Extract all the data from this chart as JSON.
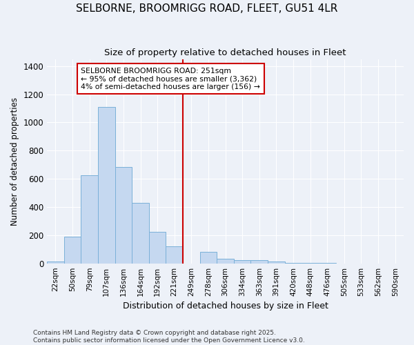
{
  "title": "SELBORNE, BROOMRIGG ROAD, FLEET, GU51 4LR",
  "subtitle": "Size of property relative to detached houses in Fleet",
  "xlabel": "Distribution of detached houses by size in Fleet",
  "ylabel": "Number of detached properties",
  "footnote": "Contains HM Land Registry data © Crown copyright and database right 2025.\nContains public sector information licensed under the Open Government Licence v3.0.",
  "bin_labels": [
    "22sqm",
    "50sqm",
    "79sqm",
    "107sqm",
    "136sqm",
    "164sqm",
    "192sqm",
    "221sqm",
    "249sqm",
    "278sqm",
    "306sqm",
    "334sqm",
    "363sqm",
    "391sqm",
    "420sqm",
    "448sqm",
    "476sqm",
    "505sqm",
    "533sqm",
    "562sqm",
    "590sqm"
  ],
  "bar_values": [
    15,
    190,
    625,
    1110,
    685,
    430,
    225,
    120,
    0,
    80,
    35,
    25,
    25,
    15,
    5,
    3,
    1,
    0,
    0,
    0,
    0
  ],
  "bar_color": "#c5d8f0",
  "bar_edge_color": "#7ab0d8",
  "vline_index": 8,
  "annotation_line1": "SELBORNE BROOMRIGG ROAD: 251sqm",
  "annotation_line2": "← 95% of detached houses are smaller (3,362)",
  "annotation_line3": "4% of semi-detached houses are larger (156) →",
  "annotation_box_color": "#cc0000",
  "vline_color": "#cc0000",
  "bg_color": "#edf1f8",
  "grid_color": "#ffffff",
  "ylim": [
    0,
    1450
  ],
  "yticks": [
    0,
    200,
    400,
    600,
    800,
    1000,
    1200,
    1400
  ]
}
